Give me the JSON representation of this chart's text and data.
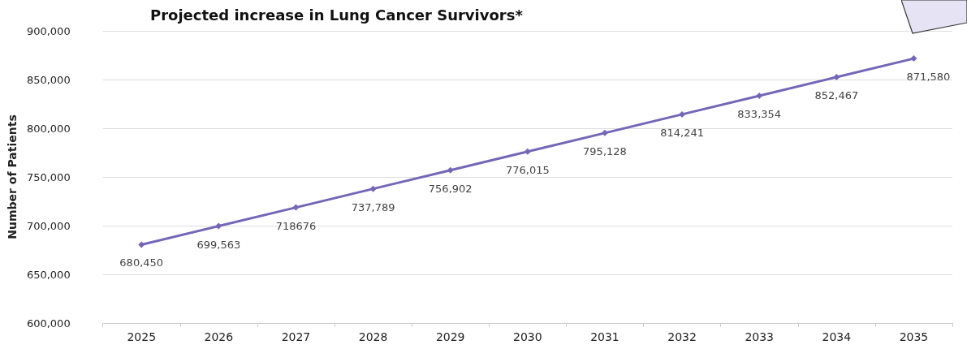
{
  "chart_data": {
    "type": "line",
    "title": "Projected increase in Lung Cancer Survivors*",
    "ylabel": "Number of Patients",
    "categories": [
      "2025",
      "2026",
      "2027",
      "2028",
      "2029",
      "2030",
      "2031",
      "2032",
      "2033",
      "2034",
      "2035"
    ],
    "series": [
      {
        "color": "#7566b8",
        "values": [
          680450,
          699563,
          718676,
          737789,
          756902,
          776015,
          795128,
          814241,
          833354,
          852467,
          871580
        ],
        "value_labels": [
          "680,450",
          "699,563",
          "718676",
          "737,789",
          "756,902",
          "776,015",
          "795,128",
          "814,241",
          "833,354",
          "852,467",
          "871,580"
        ]
      }
    ],
    "ylim": [
      600000,
      900000
    ],
    "yticks": [
      {
        "value": 600000,
        "label": "600,000"
      },
      {
        "value": 650000,
        "label": "650,000"
      },
      {
        "value": 700000,
        "label": "700,000"
      },
      {
        "value": 750000,
        "label": "750,000"
      },
      {
        "value": 800000,
        "label": "800,000"
      },
      {
        "value": 850000,
        "label": "850,000"
      },
      {
        "value": 900000,
        "label": "900,000"
      }
    ],
    "grid": "y",
    "marker": "diamond",
    "line_style": "solid"
  }
}
